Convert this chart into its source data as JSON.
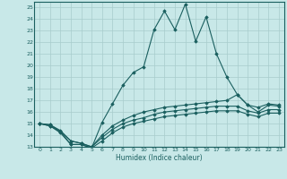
{
  "xlabel": "Humidex (Indice chaleur)",
  "bg_color": "#c8e8e8",
  "grid_color": "#a8cccc",
  "line_color": "#1a5f5f",
  "xlim": [
    -0.5,
    23.5
  ],
  "ylim": [
    13,
    25.5
  ],
  "xticks": [
    0,
    1,
    2,
    3,
    4,
    5,
    6,
    7,
    8,
    9,
    10,
    11,
    12,
    13,
    14,
    15,
    16,
    17,
    18,
    19,
    20,
    21,
    22,
    23
  ],
  "yticks": [
    13,
    14,
    15,
    16,
    17,
    18,
    19,
    20,
    21,
    22,
    23,
    24,
    25
  ],
  "series": [
    {
      "x": [
        0,
        1,
        2,
        3,
        4,
        5,
        6,
        7,
        8,
        9,
        10,
        11,
        12,
        13,
        14,
        15,
        16,
        17,
        18,
        19,
        20,
        21,
        22,
        23
      ],
      "y": [
        15,
        14.8,
        14.3,
        13.2,
        13.2,
        12.9,
        15.1,
        16.7,
        18.3,
        19.4,
        19.9,
        23.1,
        24.7,
        23.1,
        25.3,
        22.1,
        24.2,
        21.0,
        19.0,
        17.5,
        16.6,
        16.0,
        16.6,
        16.5
      ]
    },
    {
      "x": [
        0,
        1,
        2,
        3,
        4,
        5,
        6,
        7,
        8,
        9,
        10,
        11,
        12,
        13,
        14,
        15,
        16,
        17,
        18,
        19,
        20,
        21,
        22,
        23
      ],
      "y": [
        15,
        14.9,
        14.4,
        13.5,
        13.3,
        13.0,
        14.0,
        14.8,
        15.3,
        15.7,
        16.0,
        16.2,
        16.4,
        16.5,
        16.6,
        16.7,
        16.8,
        16.9,
        17.0,
        17.5,
        16.6,
        16.4,
        16.7,
        16.6
      ]
    },
    {
      "x": [
        0,
        1,
        2,
        3,
        4,
        5,
        6,
        7,
        8,
        9,
        10,
        11,
        12,
        13,
        14,
        15,
        16,
        17,
        18,
        19,
        20,
        21,
        22,
        23
      ],
      "y": [
        15,
        14.9,
        14.3,
        13.5,
        13.3,
        13.0,
        13.8,
        14.5,
        15.0,
        15.3,
        15.5,
        15.8,
        16.0,
        16.1,
        16.2,
        16.3,
        16.4,
        16.5,
        16.5,
        16.5,
        16.1,
        15.9,
        16.2,
        16.2
      ]
    },
    {
      "x": [
        0,
        1,
        2,
        3,
        4,
        5,
        6,
        7,
        8,
        9,
        10,
        11,
        12,
        13,
        14,
        15,
        16,
        17,
        18,
        19,
        20,
        21,
        22,
        23
      ],
      "y": [
        15,
        14.8,
        14.2,
        13.2,
        13.2,
        12.9,
        13.5,
        14.2,
        14.7,
        15.0,
        15.2,
        15.4,
        15.6,
        15.7,
        15.8,
        15.9,
        16.0,
        16.1,
        16.1,
        16.1,
        15.8,
        15.6,
        15.9,
        15.9
      ]
    }
  ]
}
